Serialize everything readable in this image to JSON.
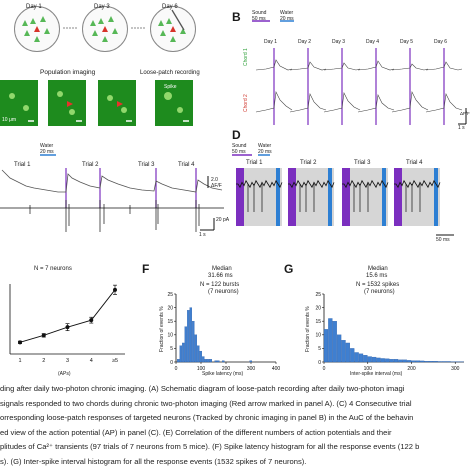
{
  "panel_a": {
    "days": [
      "Day 1",
      "Day 3",
      "Day 6"
    ],
    "population_label": "Population imaging",
    "loose_patch_label": "Loose-patch recording",
    "scale_label": "10 μm",
    "spike_label": "Spike"
  },
  "panel_b": {
    "label": "B",
    "sound_label": "Sound",
    "sound_dur": "50 ms",
    "water_label": "Water",
    "water_dur": "20 ms",
    "days": [
      "Day 1",
      "Day 2",
      "Day 3",
      "Day 4",
      "Day 5",
      "Day 6"
    ],
    "chord1": "Chord 1",
    "chord2": "Chord 2",
    "scale_y": "ΔF/F",
    "scale_x": "1 s"
  },
  "panel_c": {
    "water_label": "Water",
    "water_dur": "20 ms",
    "trials": [
      "Trial 1",
      "Trial 2",
      "Trial 3",
      "Trial 4"
    ],
    "scale_df": "2.0",
    "scale_df_unit": "ΔF/F",
    "scale_x": "1 s",
    "scale_pa": "20 pA"
  },
  "panel_d": {
    "label": "D",
    "sound_label": "Sound",
    "sound_dur": "50 ms",
    "water_label": "Water",
    "water_dur": "20 ms",
    "trials": [
      "Trial 1",
      "Trial 2",
      "Trial 3",
      "Trial 4"
    ],
    "scale_x": "50 ms",
    "colors": {
      "sound": "#7b2fbf",
      "water": "#2d7fd3",
      "shade": "#d6d6d6"
    }
  },
  "panel_e": {
    "n_label": "N = 7 neurons",
    "xlabel": "(APs)",
    "chart_data": {
      "type": "line",
      "categories": [
        "1",
        "2",
        "3",
        "4",
        "≥5"
      ],
      "values": [
        1.0,
        1.6,
        2.3,
        2.9,
        5.5
      ],
      "errors": [
        0.1,
        0.15,
        0.3,
        0.25,
        0.4
      ],
      "xlabel": "(APs)",
      "ylabel": ""
    }
  },
  "panel_f": {
    "label": "F",
    "median_label": "Median",
    "median_value": "31.66 ms",
    "n_line1": "N = 122 bursts",
    "n_line2": "(7 neurons)",
    "xlabel": "Spike latency (ms)",
    "ylabel": "Fraction of events %",
    "y_ticks": [
      "0",
      "5",
      "10",
      "15",
      "20",
      "25"
    ],
    "x_ticks": [
      "0",
      "100",
      "200",
      "300",
      "400"
    ],
    "chart_data": {
      "type": "bar",
      "x": [
        10,
        20,
        30,
        40,
        50,
        60,
        70,
        80,
        90,
        100,
        110,
        120,
        130,
        140,
        150,
        160,
        170,
        180,
        190,
        200,
        210,
        220,
        230,
        240,
        250,
        260,
        270,
        280,
        290,
        300,
        310,
        320,
        330,
        340,
        350,
        360,
        370,
        380,
        390,
        400
      ],
      "values": [
        1,
        6,
        7,
        13,
        19,
        20,
        15,
        10,
        6,
        4,
        2,
        1,
        1,
        1,
        0,
        0.5,
        0.5,
        0,
        0.5,
        0,
        0,
        0,
        0,
        0,
        0,
        0,
        0,
        0,
        0,
        0.5,
        0,
        0,
        0,
        0,
        0,
        0,
        0,
        0,
        0,
        0
      ],
      "xlim": [
        0,
        400
      ],
      "ylim": [
        0,
        25
      ],
      "xlabel": "Spike latency (ms)",
      "ylabel": "Fraction of events %"
    }
  },
  "panel_g": {
    "label": "G",
    "median_label": "Median",
    "median_value": "15.6 ms",
    "n_line1": "N = 1532 spikes",
    "n_line2": "(7 neurons)",
    "xlabel": "Inter-spike interval (ms)",
    "ylabel": "Fraction of events %",
    "y_ticks": [
      "0",
      "5",
      "10",
      "15",
      "20",
      "25"
    ],
    "x_ticks": [
      "0",
      "100",
      "200",
      "300"
    ],
    "chart_data": {
      "type": "bar",
      "x": [
        5,
        15,
        25,
        35,
        45,
        55,
        65,
        75,
        85,
        95,
        105,
        115,
        125,
        135,
        145,
        155,
        165,
        175,
        185,
        195,
        205,
        215,
        225,
        235,
        245,
        255,
        265,
        275,
        285,
        295,
        305,
        315
      ],
      "values": [
        12,
        16,
        15,
        10,
        8,
        7,
        5,
        3.5,
        3,
        2.5,
        2,
        1.8,
        1.5,
        1.3,
        1.2,
        1,
        1,
        0.8,
        0.8,
        0.6,
        0.5,
        0.5,
        0.4,
        0.3,
        0.3,
        0.3,
        0.2,
        0.2,
        0.2,
        0.1,
        0.1,
        0.1
      ],
      "xlim": [
        0,
        320
      ],
      "ylim": [
        0,
        25
      ],
      "xlabel": "Inter-spike interval (ms)",
      "ylabel": "Fraction of events %"
    }
  },
  "caption_lines": [
    "ding after daily two-photon chronic imaging. (A) Schematic diagram of loose-patch recording after daily two-photon imagi",
    "signals responded to two chords during chronic two-photon imaging (Red arrow marked in panel A). (C) 4 Consecutive trial",
    "orresponding loose-patch responses of targeted neurons (Tracked by chronic imaging in panel B) in the AuC of the behavin",
    "ed view of the action potential (AP) in panel (C). (E) Correlation of the different numbers of action potentials and their",
    "plitudes of Ca²⁺ transients (97 trials of 7 neurons from 5 mice). (F) Spike latency histogram for all the response events (122 b",
    "s). (G) Inter-spike interval histogram for all the response events (1532 spikes of 7 neurons)."
  ]
}
